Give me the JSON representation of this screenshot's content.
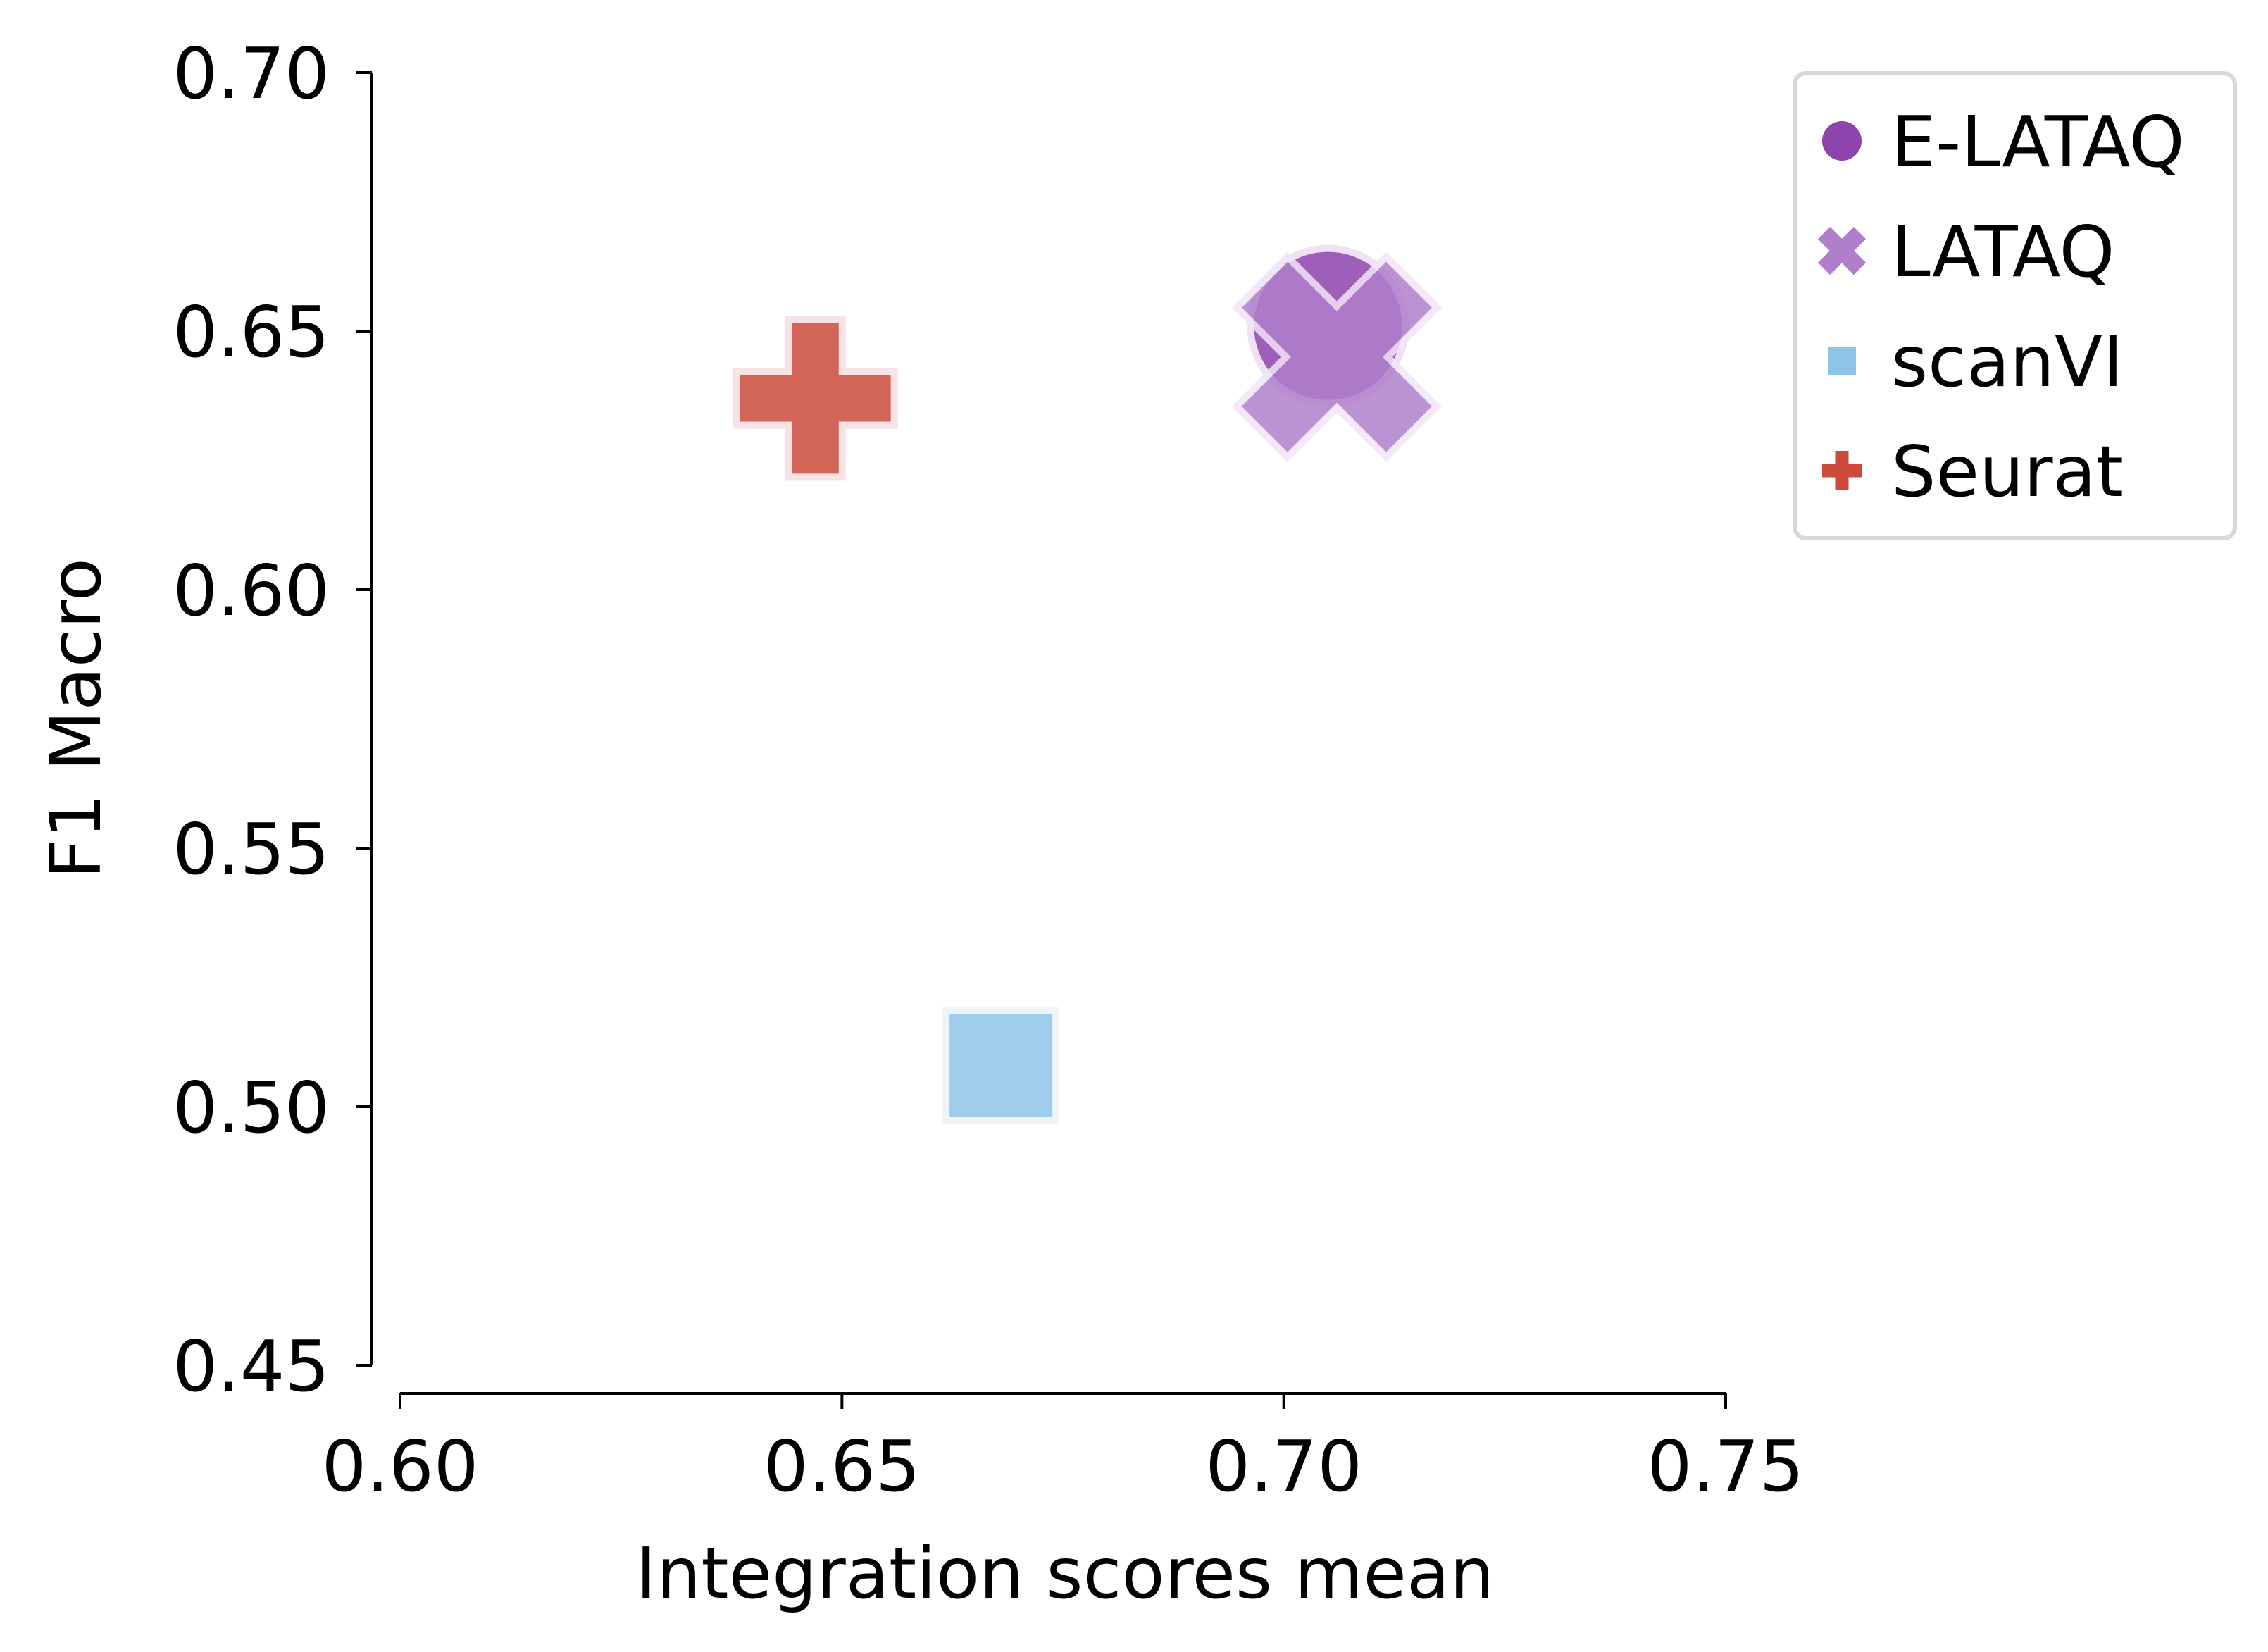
{
  "chart_data": {
    "type": "scatter",
    "xlabel": "Integration scores mean",
    "ylabel": "F1 Macro",
    "xlim": [
      0.6,
      0.75
    ],
    "ylim": [
      0.45,
      0.7
    ],
    "xticks": [
      0.6,
      0.65,
      0.7,
      0.75
    ],
    "yticks": [
      0.45,
      0.5,
      0.55,
      0.6,
      0.65,
      0.7
    ],
    "xtick_labels": [
      "0.60",
      "0.65",
      "0.70",
      "0.75"
    ],
    "ytick_labels": [
      "0.45",
      "0.50",
      "0.55",
      "0.60",
      "0.65",
      "0.70"
    ],
    "grid": false,
    "legend_position": "top-right, outside plot",
    "series": [
      {
        "name": "E-LATAQ",
        "marker": "circle",
        "color": "#8e44ad",
        "x": 0.705,
        "y": 0.651
      },
      {
        "name": "LATAQ",
        "marker": "x",
        "color": "#b07fcc",
        "x": 0.706,
        "y": 0.645
      },
      {
        "name": "scanVI",
        "marker": "square",
        "color": "#8ec4e8",
        "x": 0.668,
        "y": 0.508
      },
      {
        "name": "Seurat",
        "marker": "plus",
        "color": "#cc4b3c",
        "x": 0.647,
        "y": 0.637
      }
    ]
  }
}
